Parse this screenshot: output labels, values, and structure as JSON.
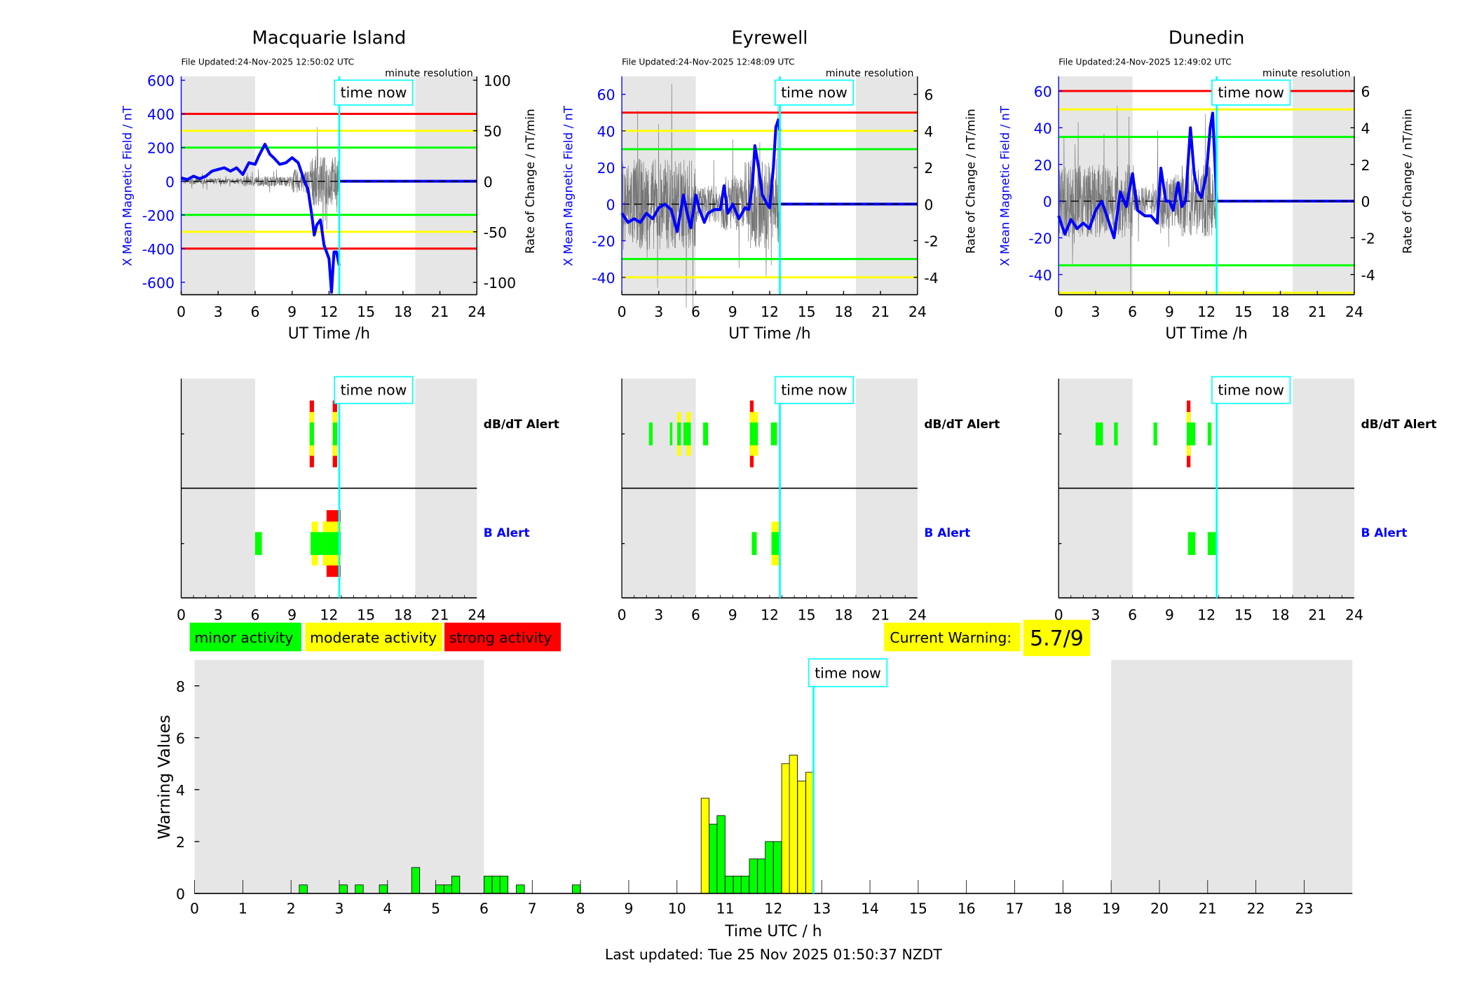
{
  "time_now_h": 12.83,
  "night_ranges_h": [
    [
      0,
      6
    ],
    [
      19,
      24
    ]
  ],
  "colors": {
    "green": "#00ff00",
    "yellow": "#ffff00",
    "red": "#ff0000",
    "blue": "#0000ff",
    "cyan": "#00ffff",
    "night": "#e6e6e6"
  },
  "time_now_label": "time now",
  "panels": [
    {
      "title": "Macquarie Island",
      "file_updated": "File Updated:24-Nov-2025 12:50:02 UTC",
      "resolution": "minute resolution",
      "left_ylabel": "X Mean Magnetic Field / nT",
      "right_ylabel": "Rate of Change / nT/min",
      "xlabel": "UT Time /h",
      "x_ticks": [
        0,
        3,
        6,
        9,
        12,
        15,
        18,
        21,
        24
      ],
      "left_ylim": [
        -674,
        623
      ],
      "left_ticks": [
        -600,
        -400,
        -200,
        0,
        200,
        400,
        600
      ],
      "right_ylim": [
        -112.3,
        103.8
      ],
      "right_ticks": [
        -100,
        -50,
        0,
        50,
        100
      ],
      "thresholds": [
        {
          "value": 400,
          "color": "red"
        },
        {
          "value": 300,
          "color": "yellow"
        },
        {
          "value": 200,
          "color": "green"
        },
        {
          "value": -200,
          "color": "green"
        },
        {
          "value": -300,
          "color": "yellow"
        },
        {
          "value": -400,
          "color": "red"
        }
      ],
      "x_field": [
        [
          0,
          20
        ],
        [
          0.5,
          10
        ],
        [
          1,
          30
        ],
        [
          1.5,
          15
        ],
        [
          2,
          30
        ],
        [
          2.5,
          60
        ],
        [
          3,
          70
        ],
        [
          3.5,
          80
        ],
        [
          4,
          60
        ],
        [
          4.5,
          80
        ],
        [
          5,
          40
        ],
        [
          5.5,
          110
        ],
        [
          6,
          100
        ],
        [
          6.3,
          150
        ],
        [
          6.8,
          220
        ],
        [
          7.2,
          160
        ],
        [
          7.5,
          140
        ],
        [
          8,
          100
        ],
        [
          8.5,
          110
        ],
        [
          9,
          140
        ],
        [
          9.5,
          110
        ],
        [
          10,
          0
        ],
        [
          10.3,
          -50
        ],
        [
          10.6,
          -200
        ],
        [
          10.8,
          -320
        ],
        [
          11,
          -260
        ],
        [
          11.3,
          -230
        ],
        [
          11.6,
          -380
        ],
        [
          12,
          -460
        ],
        [
          12.2,
          -660
        ],
        [
          12.4,
          -420
        ],
        [
          12.6,
          -420
        ],
        [
          12.83,
          -500
        ]
      ],
      "rate_envelope": [
        [
          0,
          3
        ],
        [
          5,
          5
        ],
        [
          9,
          12
        ],
        [
          10.5,
          25
        ],
        [
          12.83,
          0
        ]
      ]
    },
    {
      "title": "Eyrewell",
      "file_updated": "File Updated:24-Nov-2025 12:48:09 UTC",
      "resolution": "minute resolution",
      "left_ylabel": "X Mean Magnetic Field / nT",
      "right_ylabel": "Rate of Change / nT/min",
      "xlabel": "UT Time /h",
      "x_ticks": [
        0,
        3,
        6,
        9,
        12,
        15,
        18,
        21,
        24
      ],
      "left_ylim": [
        -49.5,
        69.8
      ],
      "left_ticks": [
        -40,
        -20,
        0,
        20,
        40,
        60
      ],
      "right_ylim": [
        -4.95,
        6.98
      ],
      "right_ticks": [
        -4,
        -2,
        0,
        2,
        4,
        6
      ],
      "thresholds": [
        {
          "value": 50,
          "color": "red"
        },
        {
          "value": 40,
          "color": "yellow"
        },
        {
          "value": 30,
          "color": "green"
        },
        {
          "value": -30,
          "color": "green"
        },
        {
          "value": -40,
          "color": "yellow"
        }
      ],
      "x_field": [
        [
          0,
          -5
        ],
        [
          0.5,
          -10
        ],
        [
          1,
          -8
        ],
        [
          1.5,
          -10
        ],
        [
          2,
          -5
        ],
        [
          2.5,
          -8
        ],
        [
          3,
          -2
        ],
        [
          3.5,
          0
        ],
        [
          4,
          -3
        ],
        [
          4.5,
          -15
        ],
        [
          5,
          5
        ],
        [
          5.3,
          -5
        ],
        [
          5.6,
          -13
        ],
        [
          6,
          5
        ],
        [
          6.3,
          -3
        ],
        [
          6.7,
          -10
        ],
        [
          7,
          -5
        ],
        [
          7.5,
          -3
        ],
        [
          8,
          -3
        ],
        [
          8.3,
          10
        ],
        [
          8.6,
          -5
        ],
        [
          9,
          0
        ],
        [
          9.5,
          -8
        ],
        [
          10,
          -2
        ],
        [
          10.3,
          -3
        ],
        [
          10.6,
          10
        ],
        [
          10.8,
          32
        ],
        [
          11.1,
          20
        ],
        [
          11.4,
          5
        ],
        [
          11.8,
          0
        ],
        [
          12,
          -2
        ],
        [
          12.3,
          20
        ],
        [
          12.5,
          42
        ],
        [
          12.7,
          46
        ],
        [
          12.83,
          40
        ]
      ],
      "rate_envelope": [
        [
          0,
          2.5
        ],
        [
          6,
          1
        ],
        [
          8,
          1.5
        ],
        [
          10,
          2.5
        ],
        [
          12.83,
          0
        ]
      ]
    },
    {
      "title": "Dunedin",
      "file_updated": "File Updated:24-Nov-2025 12:49:02 UTC",
      "resolution": "minute resolution",
      "left_ylabel": "X Mean Magnetic Field / nT",
      "right_ylabel": "Rate of Change / nT/min",
      "xlabel": "UT Time /h",
      "x_ticks": [
        0,
        3,
        6,
        9,
        12,
        15,
        18,
        21,
        24
      ],
      "left_ylim": [
        -51,
        68
      ],
      "left_ticks": [
        -40,
        -20,
        0,
        20,
        40,
        60
      ],
      "right_ylim": [
        -5.1,
        6.8
      ],
      "right_ticks": [
        -4,
        -2,
        0,
        2,
        4,
        6
      ],
      "thresholds": [
        {
          "value": 60,
          "color": "red"
        },
        {
          "value": 50,
          "color": "yellow"
        },
        {
          "value": 35,
          "color": "green"
        },
        {
          "value": -35,
          "color": "green"
        },
        {
          "value": -50,
          "color": "yellow"
        }
      ],
      "x_field": [
        [
          0,
          -8
        ],
        [
          0.5,
          -18
        ],
        [
          1,
          -10
        ],
        [
          1.5,
          -15
        ],
        [
          2,
          -12
        ],
        [
          2.5,
          -15
        ],
        [
          3,
          -5
        ],
        [
          3.5,
          0
        ],
        [
          4,
          -10
        ],
        [
          4.5,
          -20
        ],
        [
          5,
          5
        ],
        [
          5.5,
          -3
        ],
        [
          6,
          15
        ],
        [
          6.4,
          -5
        ],
        [
          7,
          -8
        ],
        [
          7.5,
          -8
        ],
        [
          8,
          -12
        ],
        [
          8.3,
          18
        ],
        [
          8.7,
          0
        ],
        [
          9,
          0
        ],
        [
          9.3,
          -5
        ],
        [
          9.7,
          10
        ],
        [
          10,
          -3
        ],
        [
          10.3,
          0
        ],
        [
          10.7,
          40
        ],
        [
          11,
          15
        ],
        [
          11.3,
          5
        ],
        [
          11.6,
          2
        ],
        [
          12,
          15
        ],
        [
          12.3,
          40
        ],
        [
          12.5,
          48
        ],
        [
          12.83,
          0
        ]
      ],
      "rate_envelope": [
        [
          0,
          2
        ],
        [
          6,
          0.8
        ],
        [
          8,
          1.5
        ],
        [
          10,
          2
        ],
        [
          12.83,
          0
        ]
      ]
    }
  ],
  "alert_labels": {
    "dbdt": "dB/dT Alert",
    "b": "B Alert"
  },
  "alerts": [
    {
      "dbdt": [
        [
          10.43,
          10.78,
          3
        ],
        [
          12.3,
          12.66,
          3
        ]
      ],
      "b": [
        [
          6.0,
          6.55,
          1
        ],
        [
          10.5,
          10.6,
          1
        ],
        [
          10.6,
          11.1,
          2
        ],
        [
          11.1,
          11.5,
          1
        ],
        [
          11.5,
          11.8,
          2
        ],
        [
          11.8,
          12.95,
          3
        ]
      ]
    },
    {
      "dbdt": [
        [
          2.2,
          2.5,
          1
        ],
        [
          3.9,
          4.1,
          1
        ],
        [
          4.5,
          4.8,
          2
        ],
        [
          5.0,
          5.25,
          1
        ],
        [
          5.25,
          5.6,
          2
        ],
        [
          6.6,
          7.0,
          1
        ],
        [
          10.4,
          10.7,
          3
        ],
        [
          10.7,
          11.05,
          2
        ],
        [
          12.1,
          12.6,
          1
        ]
      ],
      "b": [
        [
          10.55,
          10.95,
          1
        ],
        [
          12.15,
          12.8,
          2
        ]
      ]
    },
    {
      "dbdt": [
        [
          3.0,
          3.6,
          1
        ],
        [
          4.5,
          4.8,
          1
        ],
        [
          7.7,
          8.0,
          1
        ],
        [
          10.4,
          10.7,
          3
        ],
        [
          10.7,
          11.1,
          1
        ],
        [
          12.1,
          12.4,
          1
        ]
      ],
      "b": [
        [
          10.5,
          11.1,
          1
        ],
        [
          12.1,
          12.9,
          1
        ]
      ]
    }
  ],
  "legend": [
    {
      "label": "minor activity",
      "color": "green"
    },
    {
      "label": "moderate activity",
      "color": "yellow"
    },
    {
      "label": "strong activity",
      "color": "red"
    }
  ],
  "current_warning": {
    "label": "Current Warning:",
    "value": "5.7/9"
  },
  "chart_data": {
    "type": "bar",
    "xlabel": "Time UTC / h",
    "ylabel": "Warning Values",
    "xlim": [
      0,
      24
    ],
    "ylim": [
      0,
      9
    ],
    "x_ticks": [
      0,
      1,
      2,
      3,
      4,
      5,
      6,
      7,
      8,
      9,
      10,
      11,
      12,
      13,
      14,
      15,
      16,
      17,
      18,
      19,
      20,
      21,
      22,
      23
    ],
    "y_ticks": [
      0,
      2,
      4,
      6,
      8
    ],
    "bin_width_h": 0.1667,
    "bars": [
      {
        "x": 2.17,
        "value": 0.33,
        "color": "green"
      },
      {
        "x": 3.0,
        "value": 0.33,
        "color": "green"
      },
      {
        "x": 3.33,
        "value": 0.33,
        "color": "green"
      },
      {
        "x": 3.83,
        "value": 0.33,
        "color": "green"
      },
      {
        "x": 4.5,
        "value": 1.0,
        "color": "green"
      },
      {
        "x": 5.0,
        "value": 0.33,
        "color": "green"
      },
      {
        "x": 5.17,
        "value": 0.33,
        "color": "green"
      },
      {
        "x": 5.33,
        "value": 0.67,
        "color": "green"
      },
      {
        "x": 6.0,
        "value": 0.67,
        "color": "green"
      },
      {
        "x": 6.17,
        "value": 0.67,
        "color": "green"
      },
      {
        "x": 6.33,
        "value": 0.67,
        "color": "green"
      },
      {
        "x": 6.67,
        "value": 0.33,
        "color": "green"
      },
      {
        "x": 7.83,
        "value": 0.33,
        "color": "green"
      },
      {
        "x": 10.5,
        "value": 3.67,
        "color": "yellow"
      },
      {
        "x": 10.67,
        "value": 2.67,
        "color": "green"
      },
      {
        "x": 10.83,
        "value": 3.0,
        "color": "green"
      },
      {
        "x": 11.0,
        "value": 0.67,
        "color": "green"
      },
      {
        "x": 11.17,
        "value": 0.67,
        "color": "green"
      },
      {
        "x": 11.33,
        "value": 0.67,
        "color": "green"
      },
      {
        "x": 11.5,
        "value": 1.33,
        "color": "green"
      },
      {
        "x": 11.67,
        "value": 1.33,
        "color": "green"
      },
      {
        "x": 11.83,
        "value": 2.0,
        "color": "green"
      },
      {
        "x": 12.0,
        "value": 2.0,
        "color": "green"
      },
      {
        "x": 12.17,
        "value": 5.0,
        "color": "yellow"
      },
      {
        "x": 12.33,
        "value": 5.33,
        "color": "yellow"
      },
      {
        "x": 12.5,
        "value": 4.33,
        "color": "yellow"
      },
      {
        "x": 12.67,
        "value": 4.67,
        "color": "yellow"
      }
    ]
  },
  "footer": {
    "last_updated": "Last updated: Tue 25 Nov 2025 01:50:37 NZDT"
  }
}
